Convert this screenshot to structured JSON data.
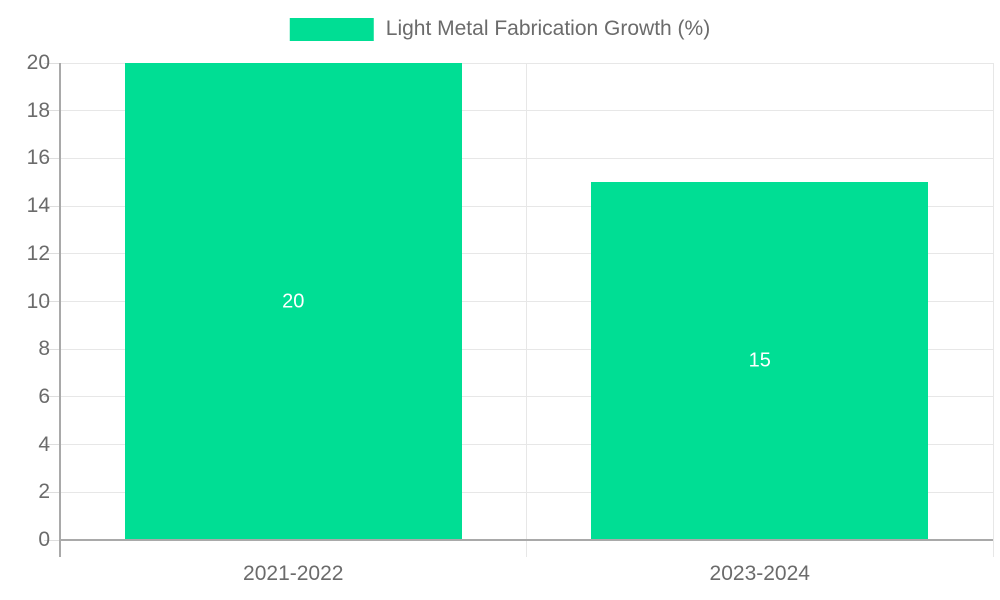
{
  "chart_data": {
    "type": "bar",
    "title": "",
    "categories": [
      "2021-2022",
      "2023-2024"
    ],
    "series": [
      {
        "name": "Light Metal Fabrication Growth (%)",
        "values": [
          20,
          15
        ]
      }
    ],
    "data_labels": [
      "20",
      "15"
    ],
    "ylim": [
      0,
      20
    ],
    "ytick_step": 2,
    "ytick_labels": [
      "0",
      "2",
      "4",
      "6",
      "8",
      "10",
      "12",
      "14",
      "16",
      "18",
      "20"
    ],
    "xlabel": "",
    "ylabel": "",
    "grid": true,
    "legend_position": "top-center"
  },
  "colors": {
    "bar": "#00de94",
    "grid": "#e7e7e7",
    "axis": "#a9a9a9",
    "tick": "#dedede",
    "axis_text": "#6b6b6b",
    "data_label": "#ffffff",
    "background": "#ffffff"
  }
}
